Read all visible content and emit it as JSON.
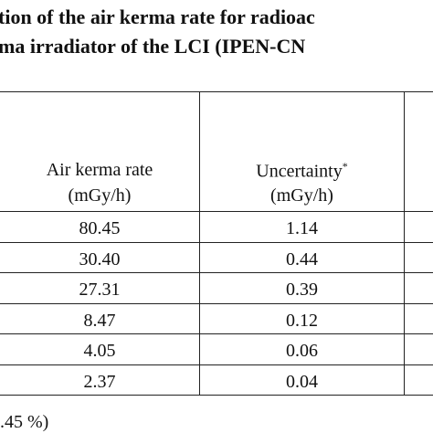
{
  "header": {
    "title_lines": [
      "tion of the air kerma rate for radioac",
      "ma irradiator of the LCI (IPEN-CN"
    ]
  },
  "table": {
    "columns": [
      {
        "name": "Air kerma rate",
        "unit": "(mGy/h)"
      },
      {
        "name": "Uncertainty",
        "marker": "*",
        "unit": "(mGy/h)"
      }
    ],
    "rows": [
      [
        "80.45",
        "1.14"
      ],
      [
        "30.40",
        "0.44"
      ],
      [
        "27.31",
        "0.39"
      ],
      [
        "8.47",
        "0.12"
      ],
      [
        "4.05",
        "0.06"
      ],
      [
        "2.37",
        "0.04"
      ]
    ]
  },
  "footnote": ".45 %)"
}
